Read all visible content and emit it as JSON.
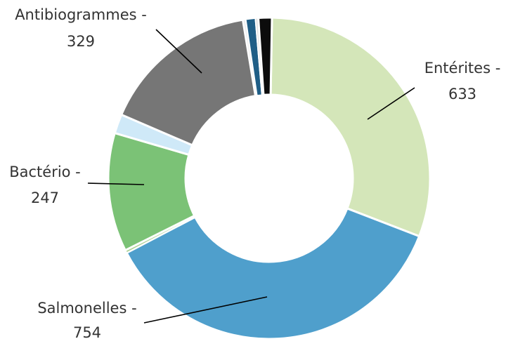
{
  "chart_data": {
    "type": "pie",
    "variant": "donut",
    "start_angle_deg": 1,
    "direction": "clockwise",
    "slices": [
      {
        "label": "Entérites",
        "value": 633,
        "color": "#d4e6b9",
        "labeled": true,
        "label_lines": [
          "Entérites -",
          "633"
        ]
      },
      {
        "label": "Salmonelles",
        "value": 754,
        "color": "#4f9fcc",
        "labeled": true,
        "label_lines": [
          "Salmonelles -",
          "754"
        ]
      },
      {
        "label": "",
        "value": 6,
        "color": "#a9cf90",
        "labeled": false,
        "label_lines": []
      },
      {
        "label": "Bactério",
        "value": 247,
        "color": "#7bc276",
        "labeled": true,
        "label_lines": [
          "Bactério -",
          "247"
        ]
      },
      {
        "label": "",
        "value": 40,
        "color": "#cfe9f8",
        "labeled": false,
        "label_lines": []
      },
      {
        "label": "Antibiogrammes",
        "value": 329,
        "color": "#767676",
        "labeled": true,
        "label_lines": [
          "Antibiogrammes -",
          "329"
        ]
      },
      {
        "label": "",
        "value": 6,
        "color": "#efefef",
        "labeled": false,
        "label_lines": []
      },
      {
        "label": "",
        "value": 20,
        "color": "#1f5e86",
        "labeled": false,
        "label_lines": []
      },
      {
        "label": "",
        "value": 6,
        "color": "#dddddd",
        "labeled": false,
        "label_lines": []
      },
      {
        "label": "",
        "value": 28,
        "color": "#0c0c0c",
        "labeled": false,
        "label_lines": []
      }
    ],
    "legend": "none",
    "title": ""
  }
}
